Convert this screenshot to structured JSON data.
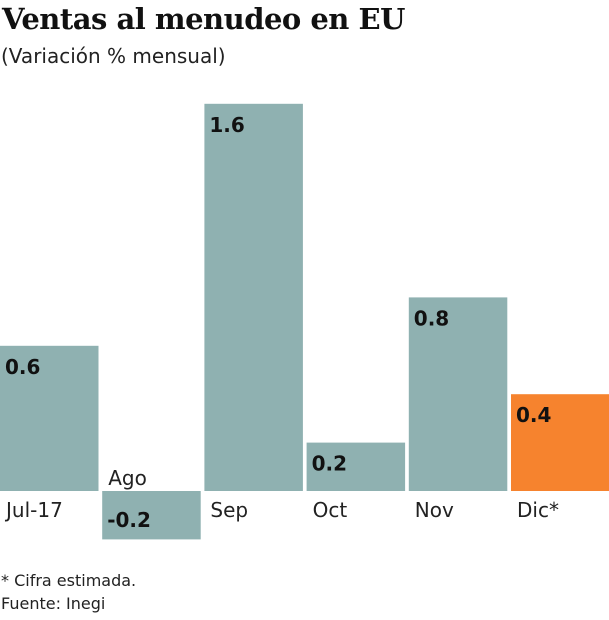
{
  "chart_data": {
    "type": "bar",
    "title": "Ventas al menudeo en EU",
    "subtitle": "(Variación % mensual)",
    "xlabel": "",
    "ylabel": "",
    "ylim": [
      -0.2,
      1.6
    ],
    "grid": false,
    "legend": "none",
    "categories": [
      "Jul-17",
      "Ago",
      "Sep",
      "Oct",
      "Nov",
      "Dic*"
    ],
    "values": [
      0.6,
      -0.2,
      1.6,
      0.2,
      0.8,
      0.4
    ],
    "value_labels": [
      "0.6",
      "-0.2",
      "1.6",
      "0.2",
      "0.8",
      "0.4"
    ],
    "bar_colors": [
      "#8fb1b1",
      "#8fb1b1",
      "#8fb1b1",
      "#8fb1b1",
      "#8fb1b1",
      "#f6832e"
    ],
    "footnotes": [
      "* Cifra estimada.",
      "Fuente: Inegi"
    ]
  }
}
